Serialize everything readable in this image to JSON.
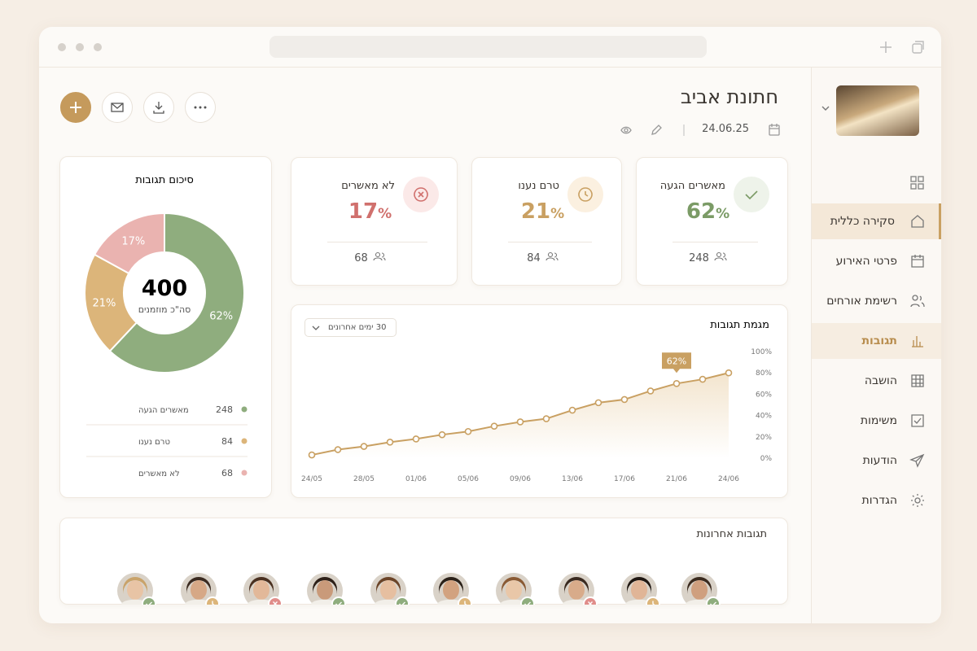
{
  "sidebar": {
    "nav": [
      "סקירה כללית",
      "פרטי האירוע",
      "רשימת אורחים",
      "תגובות",
      "הושבה",
      "משימות",
      "הודעות",
      "הגדרות"
    ]
  },
  "header": {
    "title": "חתונת אביב",
    "date": "24.06.25"
  },
  "stats": [
    {
      "label": "מאשרים הגעה",
      "percent": 62,
      "unit": "%",
      "count": 248
    },
    {
      "label": "טרם נענו",
      "percent": 21,
      "unit": "%",
      "count": 84
    },
    {
      "label": "לא מאשרים",
      "percent": 17,
      "unit": "%",
      "count": 68
    }
  ],
  "recent": {
    "title": "תגובות אחרונות"
  },
  "chart_data": [
    {
      "type": "pie",
      "title": "סיכום תגובות",
      "categories": [
        "מאשרים הגעה",
        "טרם נענו",
        "לא מאשרים"
      ],
      "values": [
        62,
        21,
        17
      ],
      "value_labels": [
        "62%",
        "21%",
        "17%"
      ],
      "colors": [
        "#8fad7e",
        "#dcb57a",
        "#eab3b0"
      ],
      "center_value": 400,
      "center_label": "סה\"כ מוזמנים",
      "counts": [
        248,
        84,
        68
      ]
    },
    {
      "type": "line",
      "title": "מגמת תגובות",
      "filter": "30 ימים אחרונים",
      "annotation": "62%",
      "color": "#c9a062",
      "categories": [
        "24/05",
        null,
        "28/05",
        null,
        "01/06",
        null,
        "05/06",
        null,
        "09/06",
        null,
        "13/06",
        null,
        "17/06",
        null,
        "21/06",
        null,
        "24/06"
      ],
      "values": [
        3,
        8,
        11,
        15,
        18,
        22,
        25,
        30,
        34,
        37,
        45,
        52,
        55,
        63,
        70,
        74,
        80
      ],
      "ylim": [
        0,
        100
      ],
      "yticks": [
        {
          "value": 0,
          "label": "0%"
        },
        {
          "value": 20,
          "label": "20%"
        },
        {
          "value": 40,
          "label": "40%"
        },
        {
          "value": 60,
          "label": "60%"
        },
        {
          "value": 80,
          "label": "80%"
        },
        {
          "value": 100,
          "label": "100%"
        }
      ]
    }
  ]
}
